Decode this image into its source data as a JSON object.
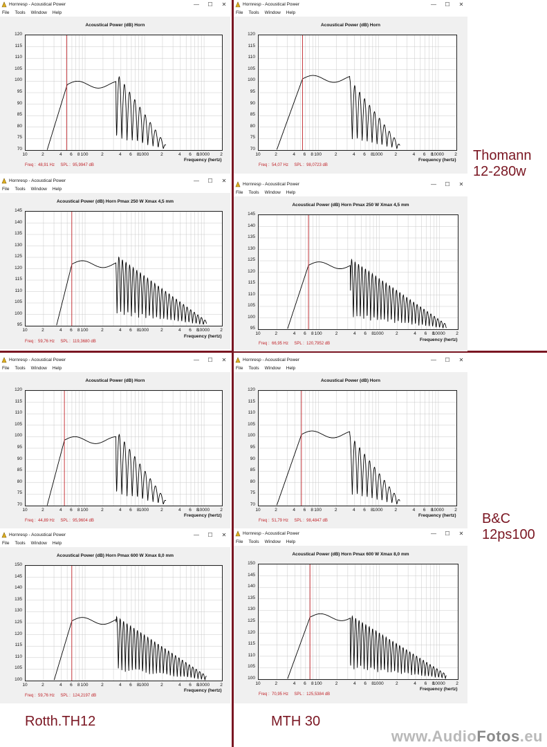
{
  "watermark": {
    "text_a": "www.Audio",
    "text_b": "Fotos",
    "text_c": ".eu"
  },
  "brands": [
    {
      "lines": [
        "Thomann",
        "12-280w"
      ]
    },
    {
      "lines": [
        "B&C",
        "12ps100"
      ]
    },
    {
      "lines": [
        "Rotth.TH12"
      ]
    },
    {
      "lines": [
        "MTH 30"
      ]
    }
  ],
  "colors": {
    "divider": "#7a1622",
    "readout": "#c0242a",
    "cursor": "#c0242a",
    "curve": "#000000",
    "grid": "#c8c8c8"
  },
  "windows": [
    {
      "id": "w1",
      "title": "Hornresp - Acoustical Power",
      "menu": [
        "File",
        "Tools",
        "Window",
        "Help"
      ],
      "chart_title": "Acoustical Power (dB)   Horn",
      "freq_label": "Frequency (hertz)",
      "readout": "Freq :  48,91 Hz     SPL :  95,9947 dB",
      "chart_data": {
        "type": "line",
        "ylim": [
          70,
          120
        ],
        "yticks": [
          70,
          75,
          80,
          85,
          90,
          95,
          100,
          105,
          110,
          115,
          120
        ],
        "xlim": [
          10,
          20000
        ],
        "xscale": "log",
        "xtick_labels": [
          "10",
          "2",
          "4",
          "6",
          "8",
          "100",
          "2",
          "4",
          "6",
          "8",
          "1000",
          "2",
          "4",
          "6",
          "8",
          "10000",
          "2"
        ],
        "cursor_hz": 48.91,
        "xlabel": "Frequency (hertz)",
        "ylabel": "Acoustical Power (dB)",
        "grid": true
      }
    },
    {
      "id": "w2",
      "title": "Hornresp - Acoustical Power",
      "menu": [
        "File",
        "Tools",
        "Window",
        "Help"
      ],
      "chart_title": "Acoustical Power (dB)   Horn",
      "freq_label": "Frequency (hertz)",
      "readout": "Freq :  54,07 Hz     SPL :  98,0723 dB",
      "chart_data": {
        "type": "line",
        "ylim": [
          70,
          120
        ],
        "yticks": [
          70,
          75,
          80,
          85,
          90,
          95,
          100,
          105,
          110,
          115,
          120
        ],
        "xlim": [
          10,
          20000
        ],
        "xscale": "log",
        "xtick_labels": [
          "10",
          "2",
          "4",
          "6",
          "8",
          "100",
          "2",
          "4",
          "6",
          "8",
          "1000",
          "2",
          "4",
          "6",
          "8",
          "10000",
          "2"
        ],
        "cursor_hz": 54.07,
        "xlabel": "Frequency (hertz)",
        "ylabel": "Acoustical Power (dB)",
        "grid": true
      }
    },
    {
      "id": "w3",
      "title": "Hornresp - Acoustical Power",
      "menu": [
        "File",
        "Tools",
        "Window",
        "Help"
      ],
      "chart_title": "Acoustical Power (dB)   Horn   Pmax 250 W   Xmax 4,5 mm",
      "freq_label": "Frequency (hertz)",
      "readout": "Freq :  59,76 Hz     SPL :  119,3680 dB",
      "chart_data": {
        "type": "line",
        "ylim": [
          95,
          145
        ],
        "yticks": [
          95,
          100,
          105,
          110,
          115,
          120,
          125,
          130,
          135,
          140,
          145
        ],
        "xlim": [
          10,
          20000
        ],
        "xscale": "log",
        "xtick_labels": [
          "10",
          "2",
          "4",
          "6",
          "8",
          "100",
          "2",
          "4",
          "6",
          "8",
          "1000",
          "2",
          "4",
          "6",
          "8",
          "10000",
          "2"
        ],
        "cursor_hz": 59.76,
        "xlabel": "Frequency (hertz)",
        "ylabel": "Acoustical Power (dB)",
        "grid": true
      }
    },
    {
      "id": "w4",
      "title": "Hornresp - Acoustical Power",
      "menu": [
        "File",
        "Tools",
        "Window",
        "Help"
      ],
      "chart_title": "Acoustical Power (dB)   Horn   Pmax 250 W   Xmax 4,5 mm",
      "freq_label": "Frequency (hertz)",
      "readout": "Freq :  66,95 Hz     SPL :  120,7952 dB",
      "chart_data": {
        "type": "line",
        "ylim": [
          95,
          145
        ],
        "yticks": [
          95,
          100,
          105,
          110,
          115,
          120,
          125,
          130,
          135,
          140,
          145
        ],
        "xlim": [
          10,
          20000
        ],
        "xscale": "log",
        "xtick_labels": [
          "10",
          "2",
          "4",
          "6",
          "8",
          "100",
          "2",
          "4",
          "6",
          "8",
          "1000",
          "2",
          "4",
          "6",
          "8",
          "10000",
          "2"
        ],
        "cursor_hz": 66.95,
        "xlabel": "Frequency (hertz)",
        "ylabel": "Acoustical Power (dB)",
        "grid": true
      }
    },
    {
      "id": "w5",
      "title": "Hornresp - Acoustical Power",
      "menu": [
        "File",
        "Tools",
        "Window",
        "Help"
      ],
      "chart_title": "Acoustical Power (dB)   Horn",
      "freq_label": "Frequency (hertz)",
      "readout": "Freq :  44,89 Hz     SPL :  95,9604 dB",
      "chart_data": {
        "type": "line",
        "ylim": [
          70,
          120
        ],
        "yticks": [
          70,
          75,
          80,
          85,
          90,
          95,
          100,
          105,
          110,
          115,
          120
        ],
        "xlim": [
          10,
          20000
        ],
        "xscale": "log",
        "xtick_labels": [
          "10",
          "2",
          "4",
          "6",
          "8",
          "100",
          "2",
          "4",
          "6",
          "8",
          "1000",
          "2",
          "4",
          "6",
          "8",
          "10000",
          "2"
        ],
        "cursor_hz": 44.89,
        "xlabel": "Frequency (hertz)",
        "ylabel": "Acoustical Power (dB)",
        "grid": true
      }
    },
    {
      "id": "w6",
      "title": "Hornresp - Acoustical Power",
      "menu": [
        "File",
        "Tools",
        "Window",
        "Help"
      ],
      "chart_title": "Acoustical Power (dB)   Horn",
      "freq_label": "Frequency (hertz)",
      "readout": "Freq :  51,79 Hz     SPL :  98,4847 dB",
      "chart_data": {
        "type": "line",
        "ylim": [
          70,
          120
        ],
        "yticks": [
          70,
          75,
          80,
          85,
          90,
          95,
          100,
          105,
          110,
          115,
          120
        ],
        "xlim": [
          10,
          20000
        ],
        "xscale": "log",
        "xtick_labels": [
          "10",
          "2",
          "4",
          "6",
          "8",
          "100",
          "2",
          "4",
          "6",
          "8",
          "1000",
          "2",
          "4",
          "6",
          "8",
          "10000",
          "2"
        ],
        "cursor_hz": 51.79,
        "xlabel": "Frequency (hertz)",
        "ylabel": "Acoustical Power (dB)",
        "grid": true
      }
    },
    {
      "id": "w7",
      "title": "Hornresp - Acoustical Power",
      "menu": [
        "File",
        "Tools",
        "Window",
        "Help"
      ],
      "chart_title": "Acoustical Power (dB)   Horn   Pmax 600 W   Xmax 8,0 mm",
      "freq_label": "Frequency (hertz)",
      "readout": "Freq :  59,76 Hz     SPL :  124,2197 dB",
      "chart_data": {
        "type": "line",
        "ylim": [
          100,
          150
        ],
        "yticks": [
          100,
          105,
          110,
          115,
          120,
          125,
          130,
          135,
          140,
          145,
          150
        ],
        "xlim": [
          10,
          20000
        ],
        "xscale": "log",
        "xtick_labels": [
          "10",
          "2",
          "4",
          "6",
          "8",
          "100",
          "2",
          "4",
          "6",
          "8",
          "1000",
          "2",
          "4",
          "6",
          "8",
          "10000",
          "2"
        ],
        "cursor_hz": 59.76,
        "xlabel": "Frequency (hertz)",
        "ylabel": "Acoustical Power (dB)",
        "grid": true
      }
    },
    {
      "id": "w8",
      "title": "Hornresp - Acoustical Power",
      "menu": [
        "File",
        "Tools",
        "Window",
        "Help"
      ],
      "chart_title": "Acoustical Power (dB)   Horn   Pmax 600 W   Xmax 8,0 mm",
      "freq_label": "Frequency (hertz)",
      "readout": "Freq :  70,95 Hz     SPL :  125,5384 dB",
      "chart_data": {
        "type": "line",
        "ylim": [
          100,
          150
        ],
        "yticks": [
          100,
          105,
          110,
          115,
          120,
          125,
          130,
          135,
          140,
          145,
          150
        ],
        "xlim": [
          10,
          20000
        ],
        "xscale": "log",
        "xtick_labels": [
          "10",
          "2",
          "4",
          "6",
          "8",
          "100",
          "2",
          "4",
          "6",
          "8",
          "1000",
          "2",
          "4",
          "6",
          "8",
          "10000",
          "2"
        ],
        "cursor_hz": 70.95,
        "xlabel": "Frequency (hertz)",
        "ylabel": "Acoustical Power (dB)",
        "grid": true
      }
    }
  ]
}
